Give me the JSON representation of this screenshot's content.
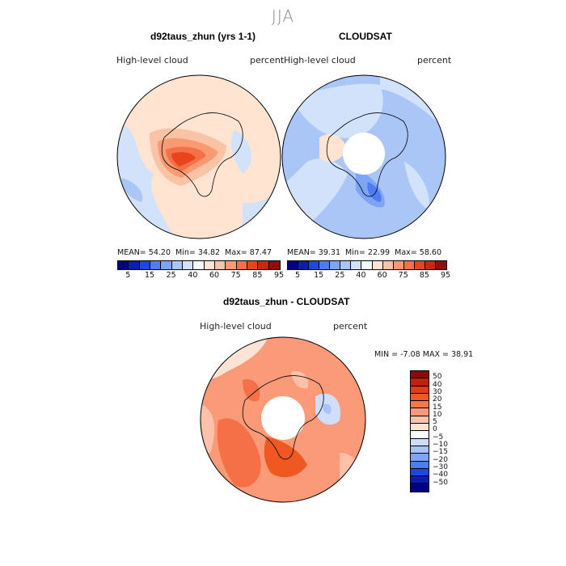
{
  "figure": {
    "season": "JJA",
    "panels": [
      {
        "title": "d92taus_zhun (yrs 1-1)",
        "variable": "High-level cloud",
        "units": "percent",
        "mean_label": "MEAN=",
        "mean": "54.20",
        "min_label": "Min=",
        "min": "34.82",
        "max_label": "Max=",
        "max": "87.47"
      },
      {
        "title": "CLOUDSAT",
        "variable": "High-level cloud",
        "units": "percent",
        "mean_label": "MEAN=",
        "mean": "39.31",
        "min_label": "Min=",
        "min": "22.99",
        "max_label": "Max=",
        "max": "58.60"
      },
      {
        "title": "d92taus_zhun - CLOUDSAT",
        "variable": "High-level cloud",
        "units": "percent",
        "min_label": "MIN =",
        "min": "-7.08",
        "max_label": "MAX =",
        "max": "38.91"
      }
    ],
    "abs_colorbar": {
      "ticks": [
        "5",
        "15",
        "25",
        "40",
        "60",
        "75",
        "85",
        "95"
      ],
      "colors": [
        "#000080",
        "#0a1fb0",
        "#1d48e0",
        "#4e7cf3",
        "#7ea5f5",
        "#a9c6f7",
        "#d2e2fa",
        "#f4fbff",
        "#ffe4d2",
        "#fbc3a6",
        "#f99a73",
        "#f57047",
        "#e8441e",
        "#c82a0e",
        "#8f0f0f"
      ]
    },
    "diff_colorbar": {
      "ticks": [
        "50",
        "40",
        "30",
        "20",
        "15",
        "10",
        "5",
        "0",
        "−5",
        "−10",
        "−15",
        "−20",
        "−30",
        "−40",
        "−50"
      ],
      "colors": [
        "#8b0a0a",
        "#c0210d",
        "#e03d14",
        "#f05822",
        "#f8764a",
        "#fa9a78",
        "#fcc1a8",
        "#fde3d4",
        "#f6fbff",
        "#cfdffb",
        "#a7c3f7",
        "#7ea5f5",
        "#4e7cf3",
        "#1d48e0",
        "#0a1fb0",
        "#000080"
      ]
    }
  }
}
